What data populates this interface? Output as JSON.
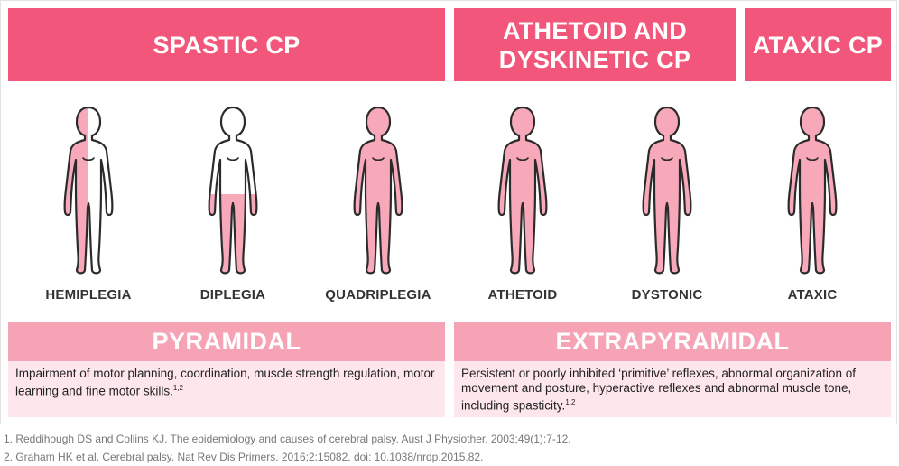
{
  "headers": {
    "spastic": "SPASTIC CP",
    "athetoid_line1": "ATHETOID AND",
    "athetoid_line2": "DYSKINETIC CP",
    "ataxic": "ATAXIC CP"
  },
  "figures": [
    {
      "label": "HEMIPLEGIA",
      "fill": "half"
    },
    {
      "label": "DIPLEGIA",
      "fill": "legs"
    },
    {
      "label": "QUADRIPLEGIA",
      "fill": "full"
    },
    {
      "label": "ATHETOID",
      "fill": "full"
    },
    {
      "label": "DYSTONIC",
      "fill": "full"
    },
    {
      "label": "ATAXIC",
      "fill": "full"
    }
  ],
  "pyramidal": {
    "title": "PYRAMIDAL",
    "description": "Impairment of motor planning, coordination, muscle strength regulation, motor learning and fine motor skills.",
    "sup": "1,2"
  },
  "extrapyramidal": {
    "title": "EXTRAPYRAMIDAL",
    "description": "Persistent or poorly inhibited ‘primitive’ reflexes, abnormal organization of movement and posture, hyperactive reflexes and abnormal muscle tone, including spasticity.",
    "sup": "1,2"
  },
  "references": [
    "1. Reddihough DS and Collins KJ. The epidemiology and causes of cerebral palsy. Aust J Physiother. 2003;49(1):7-12.",
    "2. Graham HK et al. Cerebral palsy. Nat Rev Dis Primers. 2016;2:15082. doi: 10.1038/nrdp.2015.82."
  ],
  "colors": {
    "header": "#f2567a",
    "band": "#f6a3b6",
    "panel": "#fde6ec",
    "figure_fill": "#f7a9ba",
    "outline": "#2b2b2b"
  }
}
